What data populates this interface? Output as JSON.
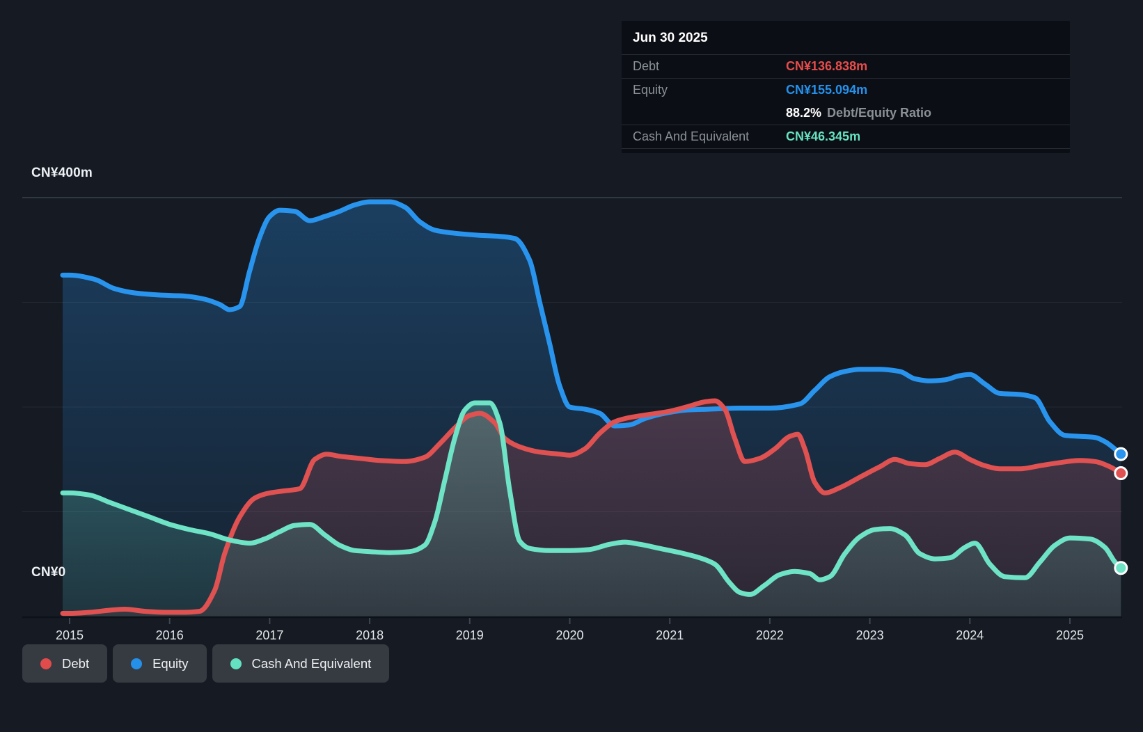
{
  "page": {
    "background": "#151a23"
  },
  "axis": {
    "top_label": "CN¥400m",
    "zero_label": "CN¥0"
  },
  "tooltip": {
    "date": "Jun 30 2025",
    "debt_label": "Debt",
    "debt_value": "CN¥136.838m",
    "equity_label": "Equity",
    "equity_value": "CN¥155.094m",
    "ratio_value": "88.2%",
    "ratio_suffix": "Debt/Equity Ratio",
    "cash_label": "Cash And Equivalent",
    "cash_value": "CN¥46.345m"
  },
  "legend": {
    "items": [
      {
        "label": "Debt",
        "color": "#e04b4b"
      },
      {
        "label": "Equity",
        "color": "#2590e9"
      },
      {
        "label": "Cash And Equivalent",
        "color": "#63e1c0"
      }
    ]
  },
  "colors": {
    "debt": "#e05151",
    "equity": "#2994ee",
    "cash": "#6ee3c6",
    "grid_major": "#3a424d",
    "grid_minor": "#232a33",
    "axis_line": "#0d1218",
    "tick": "#3f4650",
    "year_label": "#e3e6e9"
  },
  "chart_data": {
    "type": "area",
    "unit": "CN¥ millions",
    "x_ticks": [
      2015,
      2016,
      2017,
      2018,
      2019,
      2020,
      2021,
      2022,
      2023,
      2024,
      2025
    ],
    "x_range": [
      2014.93,
      2025.51
    ],
    "ylim": [
      0,
      400
    ],
    "y_gridlines_m": [
      400,
      300,
      200,
      100
    ],
    "grid": true,
    "legend_position": "bottom-left",
    "last_point_date": "Jun 30 2025",
    "series": [
      {
        "name": "Equity",
        "color": "#2994ee",
        "final_value_m": 155.094,
        "points": [
          [
            2015.0,
            326
          ],
          [
            2015.25,
            322
          ],
          [
            2015.45,
            313
          ],
          [
            2015.65,
            309
          ],
          [
            2015.9,
            307
          ],
          [
            2016.15,
            306
          ],
          [
            2016.35,
            303
          ],
          [
            2016.5,
            298
          ],
          [
            2016.6,
            293
          ],
          [
            2016.7,
            296
          ],
          [
            2016.8,
            330
          ],
          [
            2016.9,
            362
          ],
          [
            2017.0,
            382
          ],
          [
            2017.1,
            388
          ],
          [
            2017.25,
            387
          ],
          [
            2017.4,
            378
          ],
          [
            2017.55,
            382
          ],
          [
            2017.7,
            387
          ],
          [
            2017.85,
            393
          ],
          [
            2018.0,
            396
          ],
          [
            2018.2,
            396
          ],
          [
            2018.35,
            391
          ],
          [
            2018.5,
            377
          ],
          [
            2018.65,
            369
          ],
          [
            2018.85,
            366
          ],
          [
            2019.1,
            364
          ],
          [
            2019.3,
            363
          ],
          [
            2019.45,
            361
          ],
          [
            2019.6,
            340
          ],
          [
            2019.7,
            300
          ],
          [
            2019.8,
            260
          ],
          [
            2019.9,
            220
          ],
          [
            2020.0,
            200
          ],
          [
            2020.15,
            198
          ],
          [
            2020.3,
            194
          ],
          [
            2020.45,
            182
          ],
          [
            2020.6,
            183
          ],
          [
            2020.75,
            189
          ],
          [
            2020.95,
            194
          ],
          [
            2021.15,
            197
          ],
          [
            2021.4,
            198
          ],
          [
            2021.7,
            199
          ],
          [
            2022.0,
            199
          ],
          [
            2022.3,
            203
          ],
          [
            2022.45,
            216
          ],
          [
            2022.6,
            229
          ],
          [
            2022.75,
            234
          ],
          [
            2022.9,
            236
          ],
          [
            2023.1,
            236
          ],
          [
            2023.3,
            234
          ],
          [
            2023.45,
            227
          ],
          [
            2023.6,
            225
          ],
          [
            2023.75,
            226
          ],
          [
            2023.9,
            230
          ],
          [
            2024.0,
            231
          ],
          [
            2024.15,
            222
          ],
          [
            2024.3,
            213
          ],
          [
            2024.5,
            212
          ],
          [
            2024.65,
            209
          ],
          [
            2024.8,
            186
          ],
          [
            2024.95,
            173
          ],
          [
            2025.1,
            172
          ],
          [
            2025.25,
            171
          ],
          [
            2025.35,
            167
          ],
          [
            2025.51,
            155.094
          ]
        ]
      },
      {
        "name": "Debt",
        "color": "#e05151",
        "final_value_m": 136.838,
        "points": [
          [
            2015.0,
            3
          ],
          [
            2015.2,
            4
          ],
          [
            2015.4,
            6
          ],
          [
            2015.55,
            7
          ],
          [
            2015.75,
            5
          ],
          [
            2015.95,
            4
          ],
          [
            2016.15,
            4
          ],
          [
            2016.3,
            5
          ],
          [
            2016.45,
            25
          ],
          [
            2016.55,
            60
          ],
          [
            2016.7,
            95
          ],
          [
            2016.85,
            113
          ],
          [
            2017.0,
            118
          ],
          [
            2017.15,
            120
          ],
          [
            2017.3,
            122
          ],
          [
            2017.45,
            150
          ],
          [
            2017.57,
            155
          ],
          [
            2017.7,
            153
          ],
          [
            2017.9,
            151
          ],
          [
            2018.1,
            149
          ],
          [
            2018.35,
            148
          ],
          [
            2018.55,
            152
          ],
          [
            2018.7,
            165
          ],
          [
            2018.85,
            180
          ],
          [
            2019.0,
            192
          ],
          [
            2019.1,
            194
          ],
          [
            2019.25,
            185
          ],
          [
            2019.35,
            170
          ],
          [
            2019.5,
            162
          ],
          [
            2019.7,
            157
          ],
          [
            2019.9,
            155
          ],
          [
            2020.0,
            154
          ],
          [
            2020.15,
            160
          ],
          [
            2020.3,
            175
          ],
          [
            2020.45,
            186
          ],
          [
            2020.6,
            190
          ],
          [
            2020.8,
            193
          ],
          [
            2021.0,
            196
          ],
          [
            2021.2,
            201
          ],
          [
            2021.35,
            205
          ],
          [
            2021.45,
            206
          ],
          [
            2021.55,
            198
          ],
          [
            2021.65,
            170
          ],
          [
            2021.75,
            148
          ],
          [
            2021.9,
            151
          ],
          [
            2022.05,
            160
          ],
          [
            2022.2,
            172
          ],
          [
            2022.28,
            174
          ],
          [
            2022.35,
            160
          ],
          [
            2022.45,
            128
          ],
          [
            2022.55,
            118
          ],
          [
            2022.7,
            123
          ],
          [
            2022.9,
            133
          ],
          [
            2023.1,
            143
          ],
          [
            2023.25,
            150
          ],
          [
            2023.4,
            146
          ],
          [
            2023.55,
            145
          ],
          [
            2023.7,
            151
          ],
          [
            2023.85,
            157
          ],
          [
            2024.0,
            150
          ],
          [
            2024.15,
            144
          ],
          [
            2024.3,
            141
          ],
          [
            2024.5,
            141
          ],
          [
            2024.7,
            144
          ],
          [
            2024.9,
            147
          ],
          [
            2025.1,
            149
          ],
          [
            2025.25,
            148
          ],
          [
            2025.4,
            143
          ],
          [
            2025.51,
            136.838
          ]
        ]
      },
      {
        "name": "Cash And Equivalent",
        "color": "#6ee3c6",
        "final_value_m": 46.345,
        "points": [
          [
            2015.0,
            118
          ],
          [
            2015.2,
            116
          ],
          [
            2015.4,
            109
          ],
          [
            2015.6,
            102
          ],
          [
            2015.8,
            95
          ],
          [
            2016.0,
            88
          ],
          [
            2016.2,
            83
          ],
          [
            2016.4,
            79
          ],
          [
            2016.6,
            73
          ],
          [
            2016.8,
            70
          ],
          [
            2016.95,
            74
          ],
          [
            2017.1,
            81
          ],
          [
            2017.25,
            87
          ],
          [
            2017.4,
            88
          ],
          [
            2017.55,
            78
          ],
          [
            2017.7,
            68
          ],
          [
            2017.85,
            63
          ],
          [
            2018.0,
            62
          ],
          [
            2018.2,
            61
          ],
          [
            2018.4,
            62
          ],
          [
            2018.55,
            68
          ],
          [
            2018.65,
            90
          ],
          [
            2018.75,
            130
          ],
          [
            2018.85,
            170
          ],
          [
            2018.95,
            197
          ],
          [
            2019.05,
            204
          ],
          [
            2019.2,
            204
          ],
          [
            2019.3,
            185
          ],
          [
            2019.4,
            120
          ],
          [
            2019.5,
            72
          ],
          [
            2019.6,
            65
          ],
          [
            2019.8,
            63
          ],
          [
            2020.0,
            63
          ],
          [
            2020.2,
            64
          ],
          [
            2020.4,
            69
          ],
          [
            2020.55,
            71
          ],
          [
            2020.7,
            69
          ],
          [
            2020.9,
            65
          ],
          [
            2021.1,
            61
          ],
          [
            2021.3,
            56
          ],
          [
            2021.45,
            50
          ],
          [
            2021.6,
            32
          ],
          [
            2021.7,
            23
          ],
          [
            2021.8,
            21
          ],
          [
            2021.95,
            30
          ],
          [
            2022.1,
            40
          ],
          [
            2022.25,
            43
          ],
          [
            2022.4,
            41
          ],
          [
            2022.5,
            35
          ],
          [
            2022.6,
            38
          ],
          [
            2022.75,
            60
          ],
          [
            2022.9,
            76
          ],
          [
            2023.05,
            83
          ],
          [
            2023.2,
            84
          ],
          [
            2023.35,
            78
          ],
          [
            2023.5,
            60
          ],
          [
            2023.65,
            55
          ],
          [
            2023.8,
            56
          ],
          [
            2023.95,
            66
          ],
          [
            2024.05,
            70
          ],
          [
            2024.2,
            50
          ],
          [
            2024.35,
            38
          ],
          [
            2024.55,
            37
          ],
          [
            2024.7,
            52
          ],
          [
            2024.85,
            68
          ],
          [
            2025.0,
            75
          ],
          [
            2025.2,
            74
          ],
          [
            2025.35,
            66
          ],
          [
            2025.45,
            52
          ],
          [
            2025.51,
            46.345
          ]
        ]
      }
    ]
  }
}
